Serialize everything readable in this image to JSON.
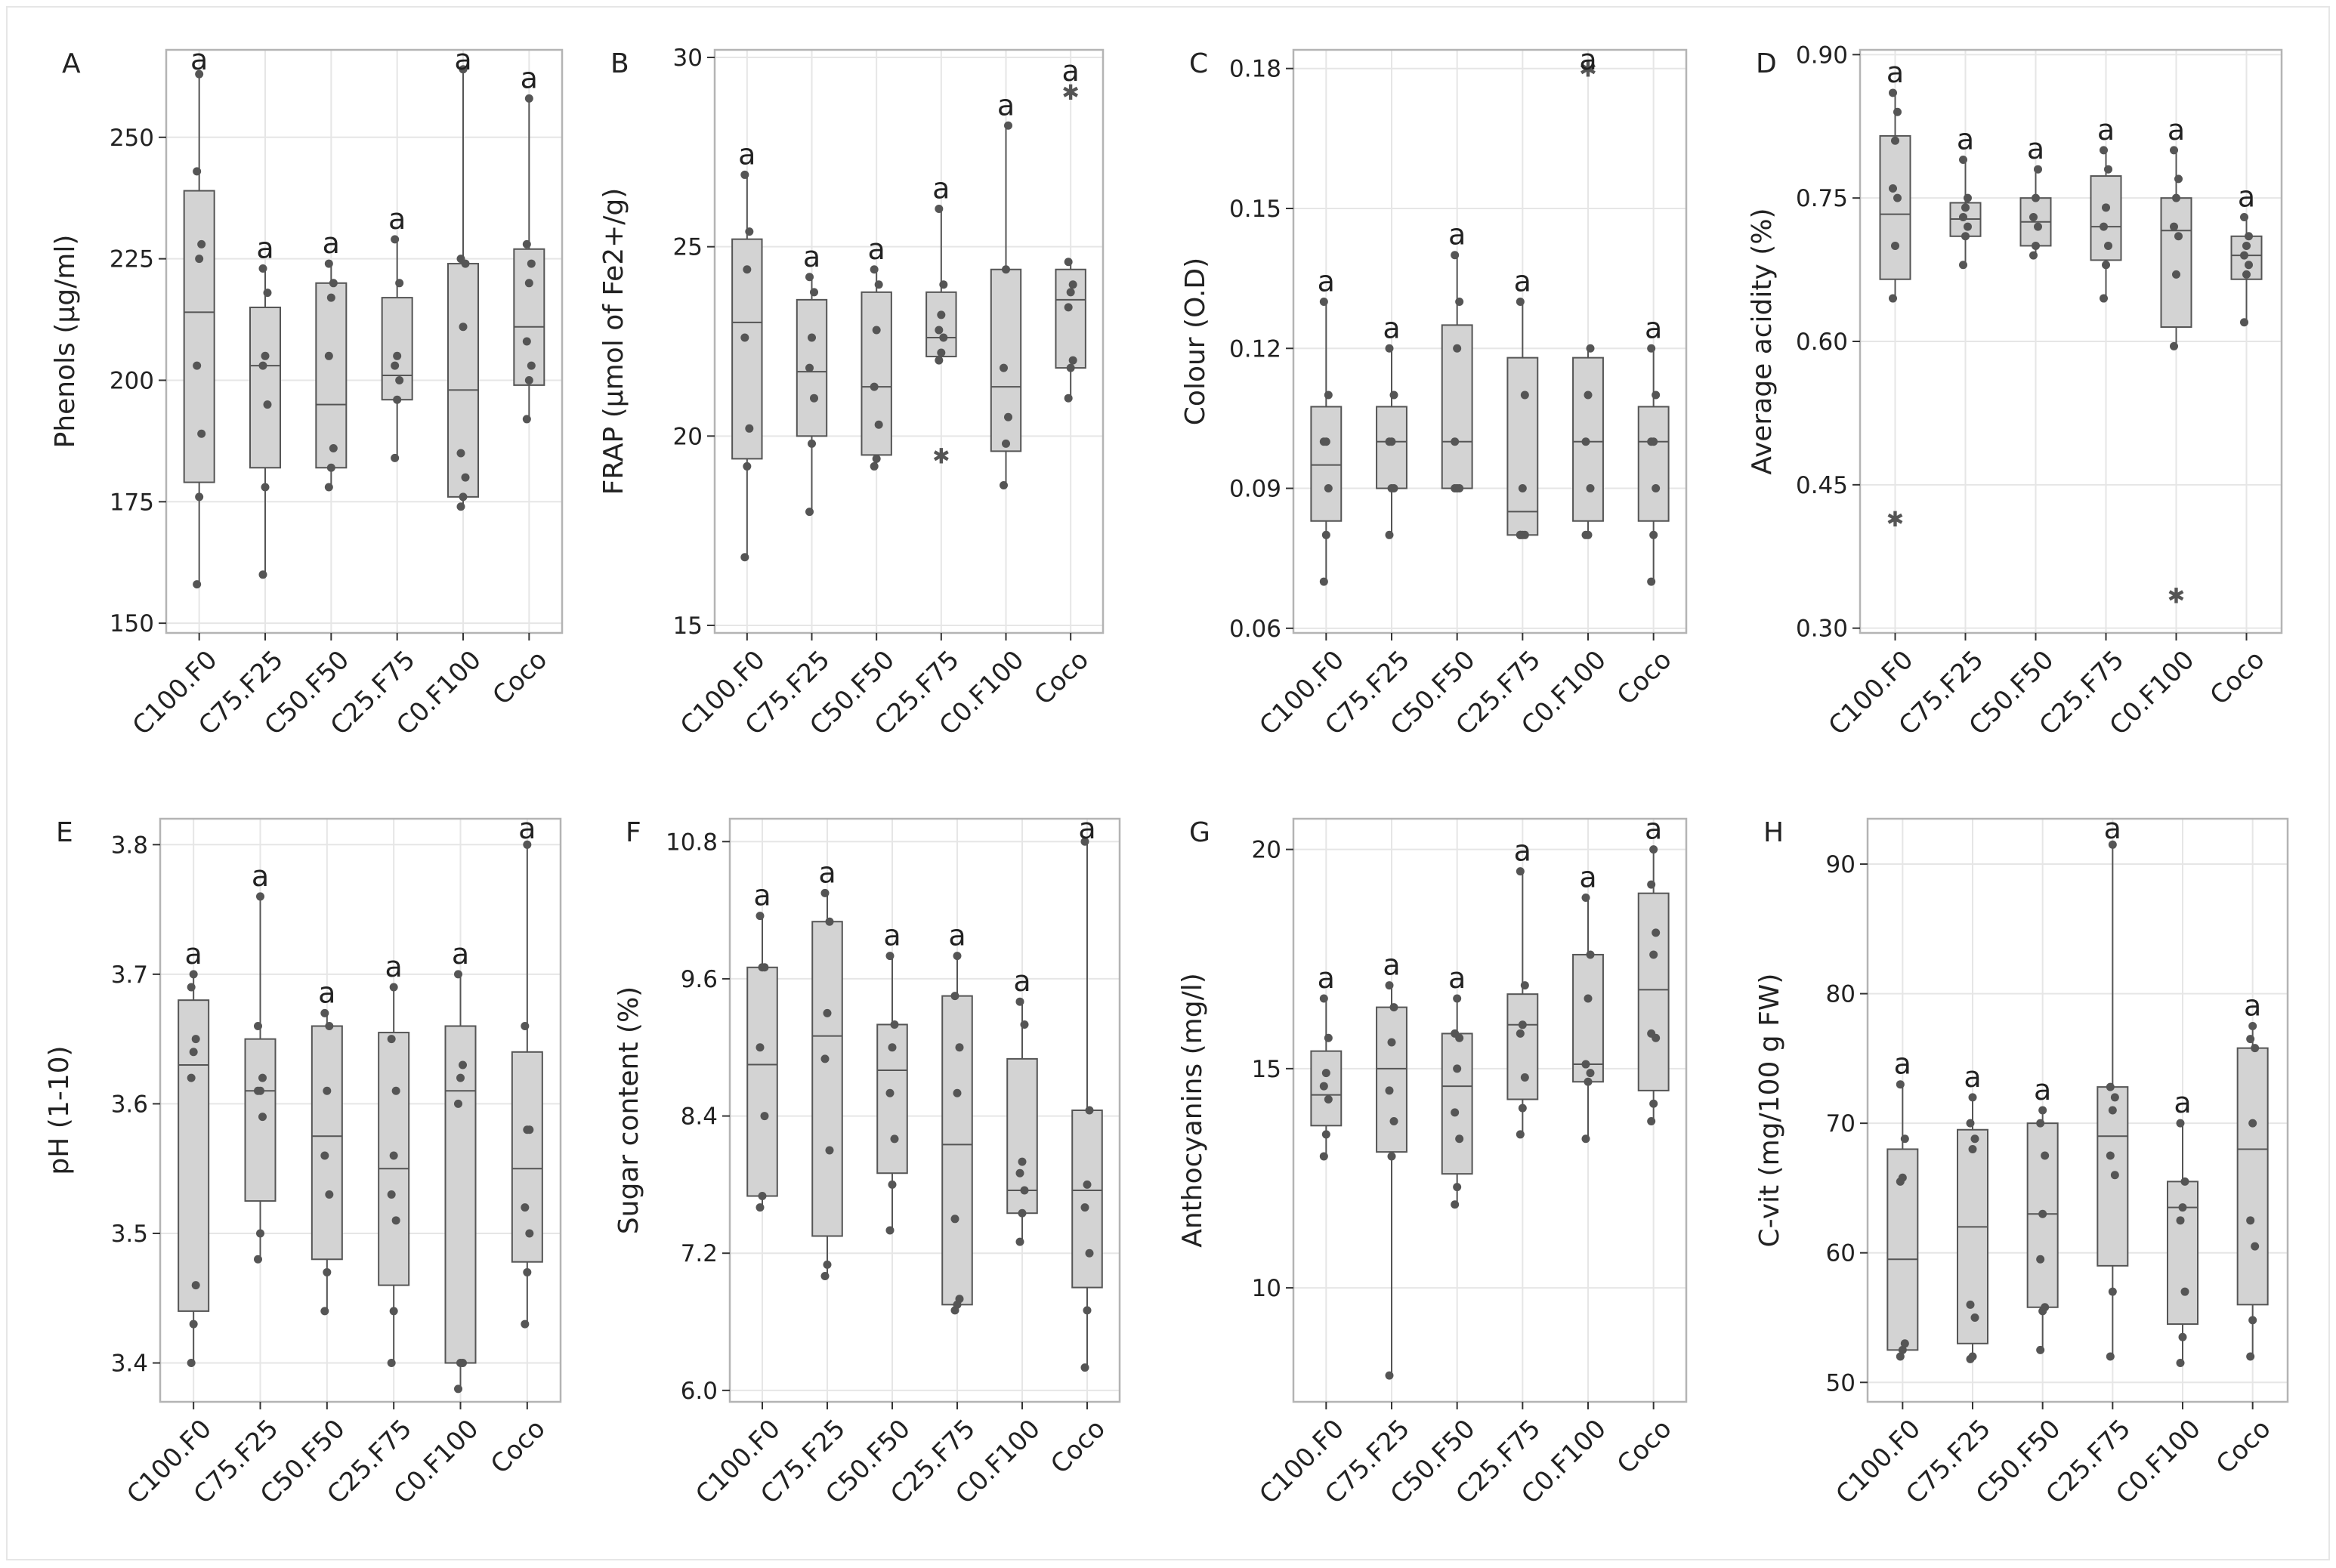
{
  "figure": {
    "background": "#ffffff"
  },
  "style": {
    "box_fill": "#d3d3d3",
    "box_stroke": "#555555",
    "point": "#555555",
    "grid": "#e6e6e6",
    "frame": "#b4b4b4"
  },
  "chart_data": [
    {
      "panel": "A",
      "type": "boxplot",
      "categories": [
        "C100.F0",
        "C75.F25",
        "C50.F50",
        "C25.F75",
        "C0.F100",
        "Coco"
      ],
      "ylabel": "Phenols (µg/ml)",
      "ylim": [
        148,
        268
      ],
      "yticks": [
        150,
        175,
        200,
        225,
        250
      ],
      "boxes": [
        {
          "q1": 179,
          "median": 214,
          "q3": 239,
          "low": 158,
          "high": 263
        },
        {
          "q1": 182,
          "median": 203,
          "q3": 215,
          "low": 160,
          "high": 223
        },
        {
          "q1": 182,
          "median": 195,
          "q3": 220,
          "low": 178,
          "high": 224
        },
        {
          "q1": 196,
          "median": 201,
          "q3": 217,
          "low": 184,
          "high": 229
        },
        {
          "q1": 176,
          "median": 198,
          "q3": 224,
          "low": 174,
          "high": 264
        },
        {
          "q1": 199,
          "median": 211,
          "q3": 227,
          "low": 192,
          "high": 258
        }
      ],
      "points": [
        [
          158,
          176,
          189,
          203,
          225,
          228,
          243,
          263
        ],
        [
          160,
          178,
          195,
          203,
          205,
          218,
          223
        ],
        [
          178,
          182,
          186,
          205,
          217,
          220,
          224
        ],
        [
          184,
          196,
          200,
          203,
          205,
          220,
          229
        ],
        [
          174,
          176,
          180,
          185,
          211,
          224,
          225,
          264
        ],
        [
          192,
          200,
          203,
          208,
          220,
          224,
          228,
          258
        ]
      ],
      "outliers": [
        [],
        [],
        [],
        [],
        [],
        []
      ],
      "labels": [
        "a",
        "a",
        "a",
        "a",
        "a",
        "a"
      ]
    },
    {
      "panel": "B",
      "type": "boxplot",
      "categories": [
        "C100.F0",
        "C75.F25",
        "C50.F50",
        "C25.F75",
        "C0.F100",
        "Coco"
      ],
      "ylabel": "FRAP (µmol of Fe2+/g)",
      "ylim": [
        14.8,
        30.2
      ],
      "yticks": [
        15,
        20,
        25,
        30
      ],
      "boxes": [
        {
          "q1": 19.4,
          "median": 23.0,
          "q3": 25.2,
          "low": 16.8,
          "high": 26.9
        },
        {
          "q1": 20.0,
          "median": 21.7,
          "q3": 23.6,
          "low": 18.0,
          "high": 24.2
        },
        {
          "q1": 19.5,
          "median": 21.3,
          "q3": 23.8,
          "low": 19.2,
          "high": 24.4
        },
        {
          "q1": 22.1,
          "median": 22.6,
          "q3": 23.8,
          "low": 22.0,
          "high": 26.0
        },
        {
          "q1": 19.6,
          "median": 21.3,
          "q3": 24.4,
          "low": 18.7,
          "high": 28.2
        },
        {
          "q1": 21.8,
          "median": 23.6,
          "q3": 24.4,
          "low": 21.0,
          "high": 24.6
        }
      ],
      "points": [
        [
          16.8,
          19.2,
          20.2,
          22.6,
          24.4,
          25.4,
          26.9
        ],
        [
          18.0,
          19.8,
          21.0,
          21.8,
          22.6,
          23.8,
          24.2
        ],
        [
          19.2,
          19.4,
          20.3,
          21.3,
          22.8,
          24.0,
          24.4
        ],
        [
          22.0,
          22.2,
          22.6,
          22.8,
          23.2,
          24.0,
          26.0
        ],
        [
          18.7,
          19.8,
          20.5,
          21.8,
          24.4,
          28.2
        ],
        [
          21.0,
          21.8,
          22.0,
          23.4,
          23.8,
          24.0,
          24.6
        ]
      ],
      "outliers": [
        [],
        [],
        [],
        [
          19.5
        ],
        [],
        [
          29.1
        ]
      ],
      "labels": [
        "a",
        "a",
        "a",
        "a",
        "a",
        "a"
      ]
    },
    {
      "panel": "C",
      "type": "boxplot",
      "categories": [
        "C100.F0",
        "C75.F25",
        "C50.F50",
        "C25.F75",
        "C0.F100",
        "Coco"
      ],
      "ylabel": "Colour (O.D)",
      "ylim": [
        0.059,
        0.184
      ],
      "yticks": [
        0.06,
        0.09,
        0.12,
        0.15,
        0.18
      ],
      "boxes": [
        {
          "q1": 0.083,
          "median": 0.095,
          "q3": 0.1075,
          "low": 0.07,
          "high": 0.13
        },
        {
          "q1": 0.09,
          "median": 0.1,
          "q3": 0.1075,
          "low": 0.08,
          "high": 0.12
        },
        {
          "q1": 0.09,
          "median": 0.1,
          "q3": 0.125,
          "low": 0.09,
          "high": 0.14
        },
        {
          "q1": 0.08,
          "median": 0.085,
          "q3": 0.118,
          "low": 0.08,
          "high": 0.13
        },
        {
          "q1": 0.083,
          "median": 0.1,
          "q3": 0.118,
          "low": 0.08,
          "high": 0.12
        },
        {
          "q1": 0.083,
          "median": 0.1,
          "q3": 0.1075,
          "low": 0.07,
          "high": 0.12
        }
      ],
      "points": [
        [
          0.07,
          0.08,
          0.09,
          0.1,
          0.1,
          0.11,
          0.13
        ],
        [
          0.08,
          0.09,
          0.09,
          0.1,
          0.1,
          0.11,
          0.12
        ],
        [
          0.09,
          0.09,
          0.09,
          0.1,
          0.12,
          0.13,
          0.14
        ],
        [
          0.08,
          0.08,
          0.08,
          0.08,
          0.09,
          0.11,
          0.13
        ],
        [
          0.08,
          0.08,
          0.09,
          0.1,
          0.11,
          0.12
        ],
        [
          0.07,
          0.08,
          0.09,
          0.1,
          0.1,
          0.11,
          0.12
        ]
      ],
      "outliers": [
        [],
        [],
        [],
        [],
        [
          0.18
        ],
        []
      ],
      "labels": [
        "a",
        "a",
        "a",
        "a",
        "a",
        "a"
      ]
    },
    {
      "panel": "D",
      "type": "boxplot",
      "categories": [
        "C100.F0",
        "C75.F25",
        "C50.F50",
        "C25.F75",
        "C0.F100",
        "Coco"
      ],
      "ylabel": "Average acidity (%)",
      "ylim": [
        0.295,
        0.905
      ],
      "yticks": [
        0.3,
        0.45,
        0.6,
        0.75,
        0.9
      ],
      "boxes": [
        {
          "q1": 0.665,
          "median": 0.733,
          "q3": 0.815,
          "low": 0.645,
          "high": 0.86
        },
        {
          "q1": 0.71,
          "median": 0.728,
          "q3": 0.745,
          "low": 0.68,
          "high": 0.79
        },
        {
          "q1": 0.7,
          "median": 0.725,
          "q3": 0.75,
          "low": 0.69,
          "high": 0.78
        },
        {
          "q1": 0.685,
          "median": 0.72,
          "q3": 0.773,
          "low": 0.645,
          "high": 0.8
        },
        {
          "q1": 0.615,
          "median": 0.716,
          "q3": 0.75,
          "low": 0.595,
          "high": 0.8
        },
        {
          "q1": 0.665,
          "median": 0.69,
          "q3": 0.71,
          "low": 0.62,
          "high": 0.73
        }
      ],
      "points": [
        [
          0.645,
          0.7,
          0.75,
          0.76,
          0.81,
          0.84,
          0.86
        ],
        [
          0.68,
          0.71,
          0.72,
          0.73,
          0.74,
          0.75,
          0.79
        ],
        [
          0.69,
          0.7,
          0.72,
          0.73,
          0.75,
          0.78
        ],
        [
          0.645,
          0.68,
          0.7,
          0.72,
          0.74,
          0.78,
          0.8
        ],
        [
          0.595,
          0.67,
          0.71,
          0.72,
          0.75,
          0.77,
          0.8
        ],
        [
          0.62,
          0.67,
          0.68,
          0.69,
          0.7,
          0.71,
          0.73
        ]
      ],
      "outliers": [
        [
          0.415
        ],
        [],
        [],
        [],
        [
          0.335
        ],
        []
      ],
      "labels": [
        "a",
        "a",
        "a",
        "a",
        "a",
        "a"
      ]
    },
    {
      "panel": "E",
      "type": "boxplot",
      "categories": [
        "C100.F0",
        "C75.F25",
        "C50.F50",
        "C25.F75",
        "C0.F100",
        "Coco"
      ],
      "ylabel": "pH (1-10)",
      "ylim": [
        3.37,
        3.82
      ],
      "yticks": [
        3.4,
        3.5,
        3.6,
        3.7,
        3.8
      ],
      "boxes": [
        {
          "q1": 3.44,
          "median": 3.63,
          "q3": 3.68,
          "low": 3.4,
          "high": 3.7
        },
        {
          "q1": 3.525,
          "median": 3.61,
          "q3": 3.65,
          "low": 3.48,
          "high": 3.76
        },
        {
          "q1": 3.48,
          "median": 3.575,
          "q3": 3.66,
          "low": 3.44,
          "high": 3.67
        },
        {
          "q1": 3.46,
          "median": 3.55,
          "q3": 3.655,
          "low": 3.4,
          "high": 3.69
        },
        {
          "q1": 3.4,
          "median": 3.61,
          "q3": 3.66,
          "low": 3.38,
          "high": 3.7
        },
        {
          "q1": 3.478,
          "median": 3.55,
          "q3": 3.64,
          "low": 3.43,
          "high": 3.8
        }
      ],
      "points": [
        [
          3.4,
          3.43,
          3.46,
          3.62,
          3.64,
          3.65,
          3.69,
          3.7
        ],
        [
          3.48,
          3.5,
          3.59,
          3.61,
          3.61,
          3.62,
          3.66,
          3.76
        ],
        [
          3.44,
          3.47,
          3.53,
          3.56,
          3.61,
          3.66,
          3.67
        ],
        [
          3.4,
          3.44,
          3.51,
          3.53,
          3.56,
          3.61,
          3.65,
          3.69
        ],
        [
          3.38,
          3.4,
          3.4,
          3.6,
          3.62,
          3.63,
          3.7
        ],
        [
          3.43,
          3.47,
          3.5,
          3.52,
          3.58,
          3.58,
          3.66,
          3.8
        ]
      ],
      "outliers": [
        [],
        [],
        [],
        [],
        [],
        []
      ],
      "labels": [
        "a",
        "a",
        "a",
        "a",
        "a",
        "a"
      ]
    },
    {
      "panel": "F",
      "type": "boxplot",
      "categories": [
        "C100.F0",
        "C75.F25",
        "C50.F50",
        "C25.F75",
        "C0.F100",
        "Coco"
      ],
      "ylabel": "Sugar content (%)",
      "ylim": [
        5.9,
        11.0
      ],
      "yticks": [
        6.0,
        7.2,
        8.4,
        9.6,
        10.8
      ],
      "boxes": [
        {
          "q1": 7.7,
          "median": 8.85,
          "q3": 9.7,
          "low": 7.6,
          "high": 10.15
        },
        {
          "q1": 7.35,
          "median": 9.1,
          "q3": 10.1,
          "low": 7.0,
          "high": 10.35
        },
        {
          "q1": 7.9,
          "median": 8.8,
          "q3": 9.2,
          "low": 7.4,
          "high": 9.8
        },
        {
          "q1": 6.75,
          "median": 8.15,
          "q3": 9.45,
          "low": 6.7,
          "high": 9.8
        },
        {
          "q1": 7.55,
          "median": 7.75,
          "q3": 8.9,
          "low": 7.3,
          "high": 9.4
        },
        {
          "q1": 6.9,
          "median": 7.75,
          "q3": 8.45,
          "low": 6.2,
          "high": 10.8
        }
      ],
      "points": [
        [
          7.6,
          7.7,
          8.4,
          9.0,
          9.7,
          9.7,
          10.15
        ],
        [
          7.0,
          7.1,
          8.1,
          8.9,
          9.3,
          10.1,
          10.35
        ],
        [
          7.4,
          7.8,
          8.2,
          8.6,
          9.0,
          9.2,
          9.8
        ],
        [
          6.7,
          6.75,
          6.8,
          7.5,
          8.6,
          9.0,
          9.45,
          9.8
        ],
        [
          7.3,
          7.55,
          7.75,
          7.9,
          8.0,
          9.2,
          9.4
        ],
        [
          6.2,
          6.7,
          7.2,
          7.6,
          7.8,
          8.45,
          10.8
        ]
      ],
      "outliers": [
        [],
        [],
        [],
        [],
        [],
        []
      ],
      "labels": [
        "a",
        "a",
        "a",
        "a",
        "a",
        "a"
      ]
    },
    {
      "panel": "G",
      "type": "boxplot",
      "categories": [
        "C100.F0",
        "C75.F25",
        "C50.F50",
        "C25.F75",
        "C0.F100",
        "Coco"
      ],
      "ylabel": "Anthocyanins (mg/l)",
      "ylim": [
        7.4,
        20.7
      ],
      "yticks": [
        10,
        15,
        20
      ],
      "boxes": [
        {
          "q1": 13.7,
          "median": 14.4,
          "q3": 15.4,
          "low": 13.0,
          "high": 16.6
        },
        {
          "q1": 13.1,
          "median": 15.0,
          "q3": 16.4,
          "low": 8.0,
          "high": 16.9
        },
        {
          "q1": 12.6,
          "median": 14.6,
          "q3": 15.8,
          "low": 11.9,
          "high": 16.6
        },
        {
          "q1": 14.3,
          "median": 16.0,
          "q3": 16.7,
          "low": 13.5,
          "high": 19.5
        },
        {
          "q1": 14.7,
          "median": 15.1,
          "q3": 17.6,
          "low": 13.4,
          "high": 18.9
        },
        {
          "q1": 14.5,
          "median": 16.8,
          "q3": 19.0,
          "low": 13.8,
          "high": 20.0
        }
      ],
      "points": [
        [
          13.0,
          13.5,
          14.3,
          14.6,
          14.9,
          15.7,
          16.6
        ],
        [
          8.0,
          13.0,
          13.8,
          14.5,
          15.6,
          16.4,
          16.9
        ],
        [
          11.9,
          12.3,
          13.4,
          14.0,
          15.0,
          15.7,
          15.8,
          16.6
        ],
        [
          13.5,
          14.1,
          14.8,
          15.8,
          16.0,
          16.9,
          19.5
        ],
        [
          13.4,
          14.7,
          14.9,
          15.1,
          16.6,
          17.6,
          18.9
        ],
        [
          13.8,
          14.2,
          15.7,
          15.8,
          17.6,
          18.1,
          19.2,
          20.0
        ]
      ],
      "outliers": [
        [],
        [],
        [],
        [],
        [],
        []
      ],
      "labels": [
        "a",
        "a",
        "a",
        "a",
        "a",
        "a"
      ]
    },
    {
      "panel": "H",
      "type": "boxplot",
      "categories": [
        "C100.F0",
        "C75.F25",
        "C50.F50",
        "C25.F75",
        "C0.F100",
        "Coco"
      ],
      "ylabel": "C-vit (mg/100 g FW)",
      "ylim": [
        48.5,
        93.5
      ],
      "yticks": [
        50,
        60,
        70,
        80,
        90
      ],
      "boxes": [
        {
          "q1": 52.5,
          "median": 59.5,
          "q3": 68.0,
          "low": 52.0,
          "high": 73.0
        },
        {
          "q1": 53.0,
          "median": 62.0,
          "q3": 69.5,
          "low": 51.8,
          "high": 72.0
        },
        {
          "q1": 55.8,
          "median": 63.0,
          "q3": 70.0,
          "low": 52.5,
          "high": 71.0
        },
        {
          "q1": 59.0,
          "median": 69.0,
          "q3": 72.8,
          "low": 52.0,
          "high": 91.5
        },
        {
          "q1": 54.5,
          "median": 63.5,
          "q3": 65.5,
          "low": 51.5,
          "high": 70.0
        },
        {
          "q1": 56.0,
          "median": 68.0,
          "q3": 75.8,
          "low": 52.0,
          "high": 77.5
        }
      ],
      "points": [
        [
          52.0,
          52.5,
          53.0,
          65.5,
          65.8,
          68.8,
          73.0
        ],
        [
          51.8,
          52.0,
          55.0,
          56.0,
          68.0,
          68.8,
          70.0,
          72.0
        ],
        [
          52.5,
          55.5,
          55.8,
          59.5,
          63.0,
          67.5,
          70.0,
          71.0
        ],
        [
          52.0,
          57.0,
          66.0,
          67.5,
          71.0,
          72.0,
          72.8,
          91.5
        ],
        [
          51.5,
          53.5,
          57.0,
          62.5,
          63.5,
          65.5,
          70.0
        ],
        [
          52.0,
          54.8,
          60.5,
          62.5,
          70.0,
          75.8,
          76.5,
          77.5
        ]
      ],
      "outliers": [
        [],
        [],
        [],
        [],
        [],
        []
      ],
      "labels": [
        "a",
        "a",
        "a",
        "a",
        "a",
        "a"
      ]
    }
  ]
}
